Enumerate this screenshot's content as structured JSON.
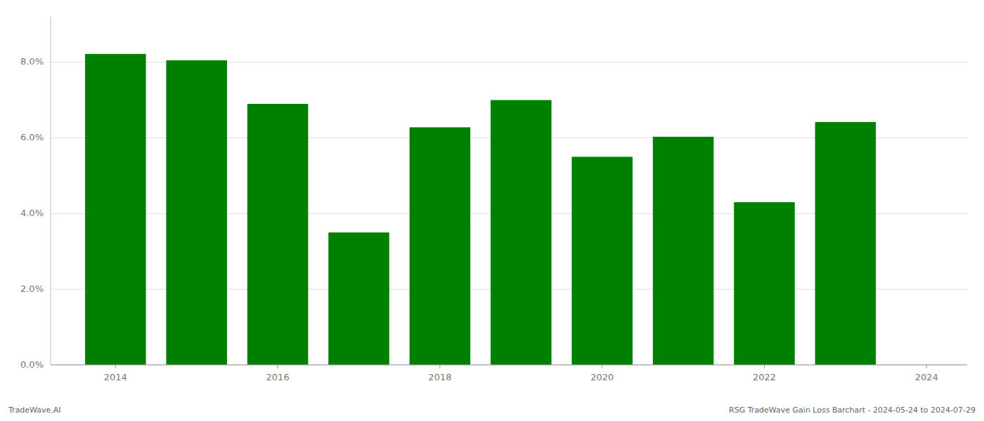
{
  "chart_data": {
    "type": "bar",
    "x": [
      2014,
      2015,
      2016,
      2017,
      2018,
      2019,
      2020,
      2021,
      2022,
      2023
    ],
    "values": [
      0.0822,
      0.0805,
      0.069,
      0.035,
      0.0628,
      0.07,
      0.055,
      0.0603,
      0.043,
      0.0642
    ],
    "color": "#008000",
    "xlim": [
      2013.2,
      2024.5
    ],
    "xticks": [
      2014,
      2016,
      2018,
      2020,
      2022,
      2024
    ],
    "ylim": [
      0,
      0.092
    ],
    "yticks": [
      {
        "value": 0.0,
        "label": "0.0%"
      },
      {
        "value": 0.02,
        "label": "2.0%"
      },
      {
        "value": 0.04,
        "label": "4.0%"
      },
      {
        "value": 0.06,
        "label": "6.0%"
      },
      {
        "value": 0.08,
        "label": "8.0%"
      }
    ],
    "grid": true,
    "annotations": [
      "TradeWave.AI",
      "RSG TradeWave Gain Loss Barchart - 2024-05-24 to 2024-07-29"
    ]
  }
}
